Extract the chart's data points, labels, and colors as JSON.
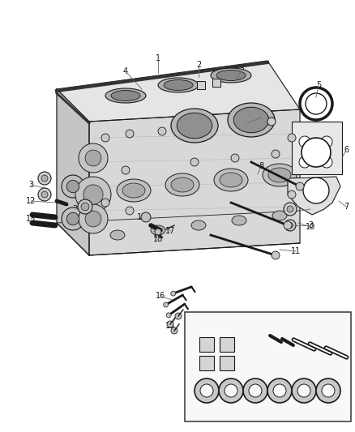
{
  "background_color": "#ffffff",
  "fig_width": 4.38,
  "fig_height": 5.33,
  "dpi": 100,
  "line_color": "#1a1a1a",
  "label_color": "#111111",
  "label_fontsize": 7.0,
  "leader_line_color": "#555555"
}
